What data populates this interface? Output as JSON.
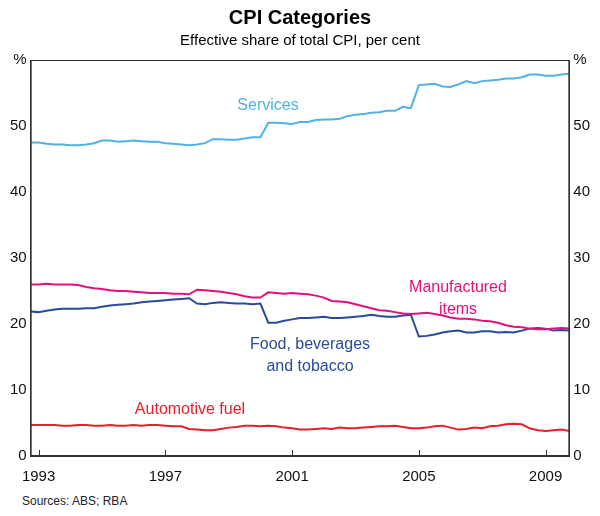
{
  "chart_data": {
    "type": "line",
    "title": "CPI Categories",
    "subtitle": "Effective share of total CPI, per cent",
    "source": "Sources: ABS; RBA",
    "categories": [
      null,
      "1993",
      null,
      null,
      null,
      null,
      null,
      null,
      null,
      null,
      null,
      null,
      null,
      null,
      null,
      null,
      null,
      "1997",
      null,
      null,
      null,
      null,
      null,
      null,
      null,
      null,
      null,
      null,
      null,
      null,
      null,
      null,
      null,
      "2001",
      null,
      null,
      null,
      null,
      null,
      null,
      null,
      null,
      null,
      null,
      null,
      null,
      null,
      null,
      null,
      "2005",
      null,
      null,
      null,
      null,
      null,
      null,
      null,
      null,
      null,
      null,
      null,
      null,
      null,
      null,
      null,
      "2009",
      null,
      null,
      null
    ],
    "series": [
      {
        "name": "Services",
        "color": "#4db3e2",
        "values": [
          47.5,
          47.5,
          47.3,
          47.2,
          47.2,
          47.1,
          47.1,
          47.2,
          47.4,
          47.8,
          47.8,
          47.6,
          47.7,
          47.8,
          47.7,
          47.6,
          47.6,
          47.4,
          47.3,
          47.2,
          47.1,
          47.2,
          47.4,
          48.0,
          48.0,
          47.9,
          47.9,
          48.1,
          48.3,
          48.3,
          50.5,
          50.5,
          50.4,
          50.3,
          50.6,
          50.6,
          50.9,
          51.0,
          51.0,
          51.1,
          51.5,
          51.7,
          51.8,
          52.0,
          52.1,
          52.3,
          52.3,
          52.9,
          52.7,
          56.2,
          56.3,
          56.4,
          56.0,
          55.9,
          56.3,
          56.8,
          56.5,
          56.8,
          56.9,
          57.0,
          57.2,
          57.2,
          57.4,
          57.8,
          57.8,
          57.6,
          57.6,
          57.8,
          57.9
        ]
      },
      {
        "name": "Manufactured items",
        "color": "#e2127c",
        "values": [
          26.0,
          26.0,
          26.1,
          26.0,
          26.0,
          26.0,
          25.9,
          25.6,
          25.4,
          25.3,
          25.1,
          25.0,
          25.0,
          24.9,
          24.8,
          24.7,
          24.7,
          24.7,
          24.6,
          24.6,
          24.5,
          25.2,
          25.1,
          25.0,
          24.9,
          24.7,
          24.5,
          24.2,
          24.0,
          24.0,
          24.8,
          24.7,
          24.6,
          24.7,
          24.6,
          24.5,
          24.3,
          24.0,
          23.5,
          23.4,
          23.3,
          23.0,
          22.7,
          22.4,
          22.1,
          22.0,
          21.8,
          21.6,
          21.5,
          21.6,
          21.7,
          21.5,
          21.3,
          21.0,
          20.8,
          20.8,
          20.7,
          20.5,
          20.4,
          20.2,
          19.8,
          19.6,
          19.5,
          19.3,
          19.2,
          19.2,
          19.3,
          19.4,
          19.3
        ]
      },
      {
        "name": "Food, beverages and tobacco",
        "color": "#294a9c",
        "values": [
          21.9,
          21.8,
          22.0,
          22.2,
          22.3,
          22.3,
          22.3,
          22.4,
          22.4,
          22.6,
          22.8,
          22.9,
          23.0,
          23.1,
          23.3,
          23.4,
          23.5,
          23.6,
          23.7,
          23.8,
          23.9,
          23.1,
          23.0,
          23.2,
          23.3,
          23.2,
          23.1,
          23.1,
          23.0,
          23.1,
          20.2,
          20.2,
          20.5,
          20.7,
          20.9,
          20.9,
          21.0,
          21.1,
          20.9,
          20.9,
          21.0,
          21.1,
          21.2,
          21.4,
          21.2,
          21.1,
          21.1,
          21.3,
          21.4,
          18.1,
          18.2,
          18.4,
          18.7,
          18.9,
          19.0,
          18.7,
          18.7,
          18.9,
          18.9,
          18.7,
          18.8,
          18.7,
          19.0,
          19.3,
          19.4,
          19.3,
          19.0,
          19.1,
          19.0
        ]
      },
      {
        "name": "Automotive fuel",
        "color": "#e3202b",
        "values": [
          4.7,
          4.7,
          4.7,
          4.7,
          4.6,
          4.6,
          4.7,
          4.7,
          4.6,
          4.6,
          4.7,
          4.6,
          4.6,
          4.7,
          4.6,
          4.7,
          4.7,
          4.6,
          4.5,
          4.5,
          4.1,
          4.0,
          3.9,
          3.9,
          4.1,
          4.3,
          4.4,
          4.6,
          4.6,
          4.5,
          4.6,
          4.5,
          4.3,
          4.2,
          4.0,
          4.0,
          4.1,
          4.2,
          4.1,
          4.3,
          4.2,
          4.2,
          4.3,
          4.4,
          4.5,
          4.5,
          4.6,
          4.4,
          4.2,
          4.2,
          4.3,
          4.5,
          4.6,
          4.3,
          4.0,
          4.1,
          4.3,
          4.2,
          4.5,
          4.6,
          4.8,
          4.9,
          4.8,
          4.2,
          3.9,
          3.8,
          3.9,
          4.0,
          3.8
        ]
      }
    ],
    "ylim": [
      0,
      60
    ],
    "yticks": [
      0,
      10,
      20,
      30,
      40,
      50,
      {
        "value": 60,
        "label": "%"
      }
    ],
    "y2lim": [
      0,
      60
    ],
    "y2ticks": [
      0,
      10,
      20,
      30,
      40,
      50,
      {
        "value": 60,
        "label": "%"
      }
    ],
    "grid": false
  }
}
